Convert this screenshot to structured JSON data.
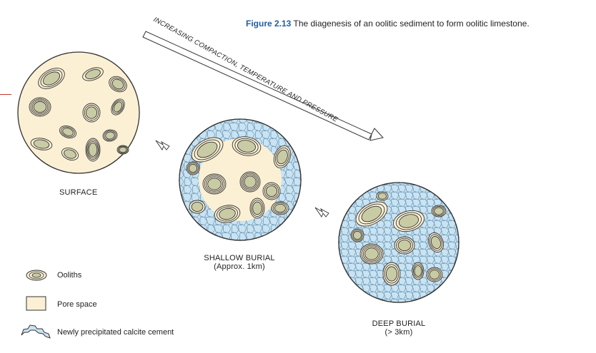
{
  "caption": {
    "figure_number": "Figure 2.13",
    "text": "The diagenesis of an oolitic sediment to form oolitic limestone."
  },
  "process_arrow": {
    "label": "INCREASING COMPACTION, TEMPERATURE AND PRESSURE"
  },
  "stages": [
    {
      "name": "SURFACE",
      "detail": ""
    },
    {
      "name": "SHALLOW BURIAL",
      "detail": "(Approx. 1km)"
    },
    {
      "name": "DEEP BURIAL",
      "detail": "(> 3km)"
    }
  ],
  "legend": [
    {
      "label": "Ooliths"
    },
    {
      "label": "Pore space"
    },
    {
      "label": "Newly precipitated calcite cement"
    }
  ],
  "colors": {
    "caption_accent": "#1f5fa8",
    "pore_space": "#fbf0d4",
    "oolith_core": "#c9cba5",
    "cement": "#c9e3f2",
    "outline": "#333333",
    "marker": "#c0392b"
  }
}
